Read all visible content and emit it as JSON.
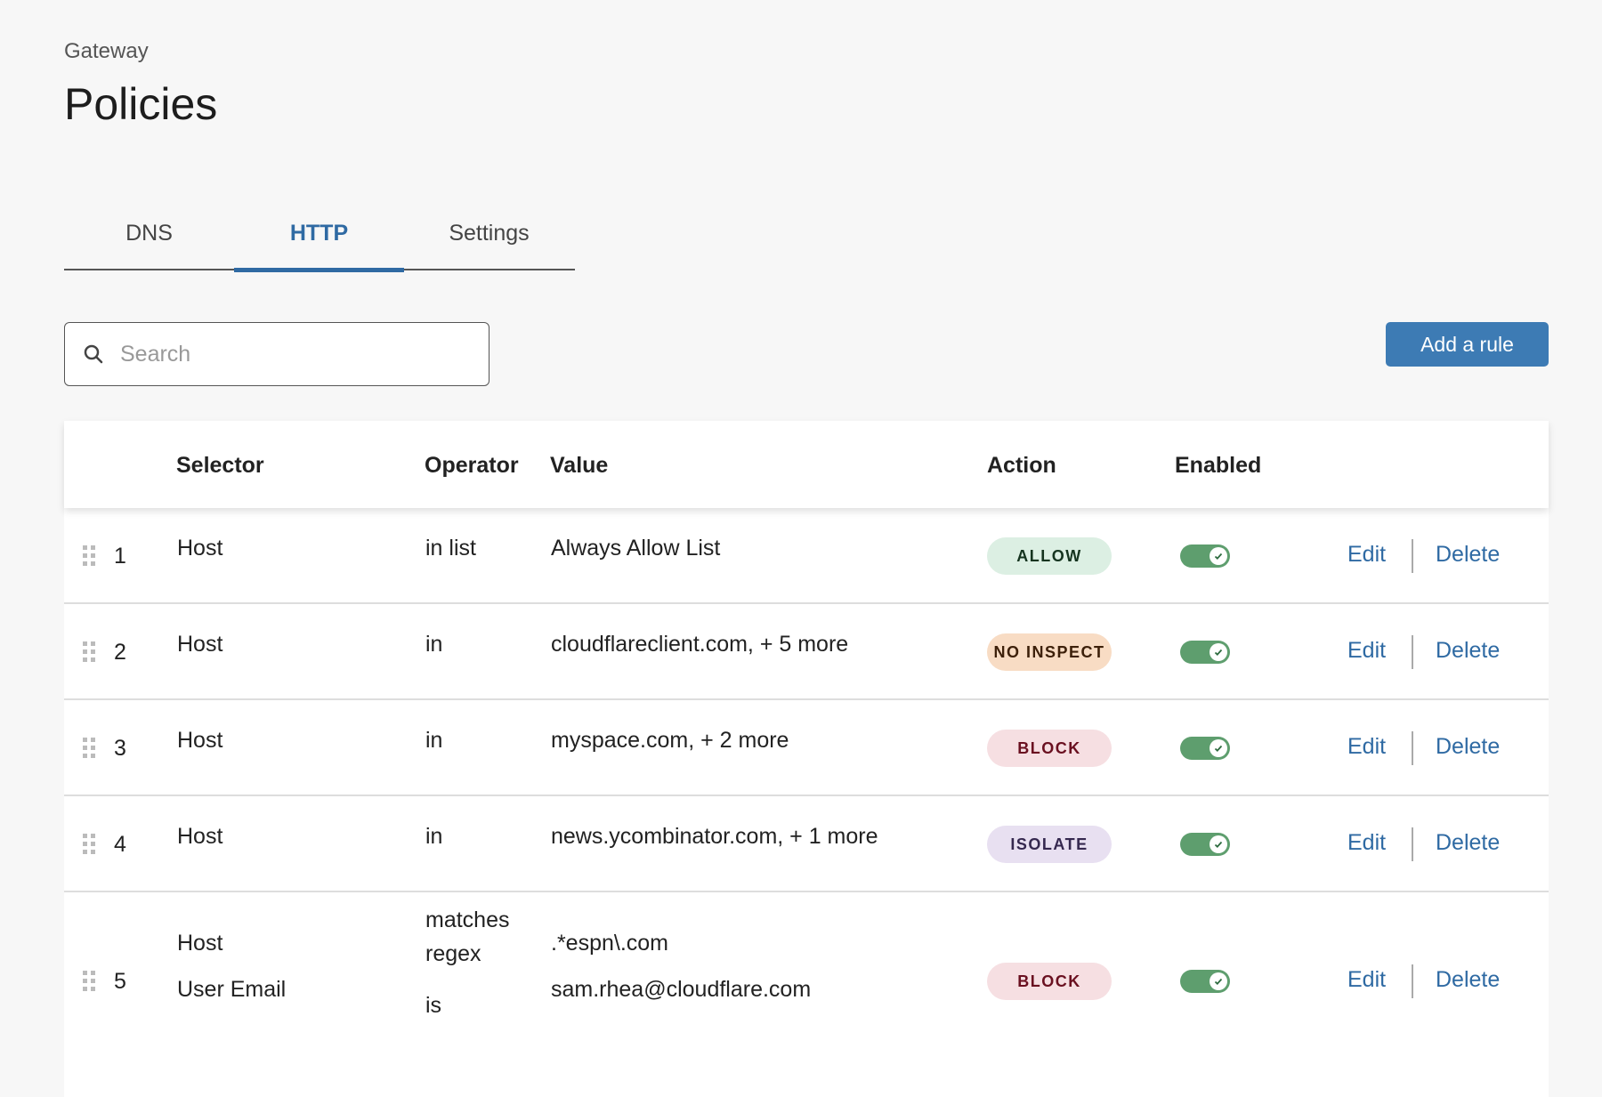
{
  "header": {
    "breadcrumb": "Gateway",
    "title": "Policies"
  },
  "tabs": [
    {
      "label": "DNS",
      "active": false
    },
    {
      "label": "HTTP",
      "active": true
    },
    {
      "label": "Settings",
      "active": false
    }
  ],
  "search": {
    "placeholder": "Search",
    "value": ""
  },
  "toolbar": {
    "add_rule_label": "Add a rule"
  },
  "table": {
    "columns": {
      "selector": "Selector",
      "operator": "Operator",
      "value": "Value",
      "action": "Action",
      "enabled": "Enabled"
    },
    "edit_label": "Edit",
    "delete_label": "Delete",
    "rows": [
      {
        "index": "1",
        "selector": [
          "Host"
        ],
        "operator": [
          "in list"
        ],
        "value": [
          "Always Allow List"
        ],
        "action": "ALLOW",
        "action_bg": "#dcefe3",
        "action_fg": "#15341f",
        "enabled": true
      },
      {
        "index": "2",
        "selector": [
          "Host"
        ],
        "operator": [
          "in"
        ],
        "value": [
          "cloudflareclient.com, + 5 more"
        ],
        "action": "NO INSPECT",
        "action_bg": "#f8dcc4",
        "action_fg": "#3d200a",
        "enabled": true
      },
      {
        "index": "3",
        "selector": [
          "Host"
        ],
        "operator": [
          "in"
        ],
        "value": [
          "myspace.com, + 2 more"
        ],
        "action": "BLOCK",
        "action_bg": "#f6dfe2",
        "action_fg": "#6a1020",
        "enabled": true
      },
      {
        "index": "4",
        "selector": [
          "Host"
        ],
        "operator": [
          "in"
        ],
        "value": [
          "news.ycombinator.com, + 1 more"
        ],
        "action": "ISOLATE",
        "action_bg": "#e8e0f1",
        "action_fg": "#35284f",
        "enabled": true
      },
      {
        "index": "5",
        "selector": [
          "Host",
          "User Email"
        ],
        "operator": [
          "matches regex",
          "is"
        ],
        "value": [
          ".*espn\\.com",
          "sam.rhea@cloudflare.com"
        ],
        "action": "BLOCK",
        "action_bg": "#f6dfe2",
        "action_fg": "#6a1020",
        "enabled": true
      }
    ]
  },
  "colors": {
    "accent": "#2f6aa3",
    "button": "#3d7bb4",
    "toggle_on": "#5e9e6e",
    "background": "#f7f7f7"
  }
}
